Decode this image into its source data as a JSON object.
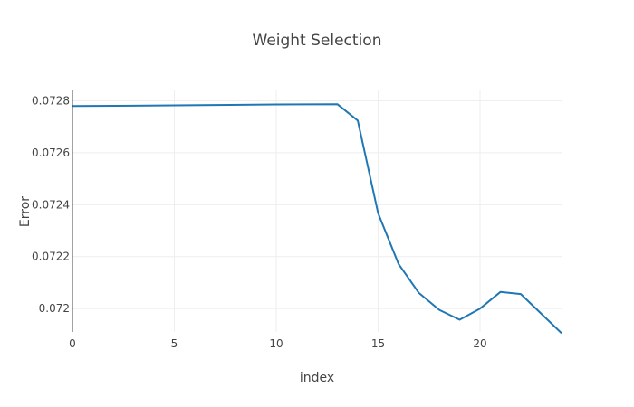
{
  "chart_data": {
    "type": "line",
    "title": "Weight Selection",
    "xlabel": "index",
    "ylabel": "Error",
    "xlim": [
      0,
      24
    ],
    "ylim": [
      0.07191,
      0.07284
    ],
    "x_ticks": [
      0,
      5,
      10,
      15,
      20
    ],
    "x_tick_labels": [
      "0",
      "5",
      "10",
      "15",
      "20"
    ],
    "y_ticks": [
      0.072,
      0.0722,
      0.0724,
      0.0726,
      0.0728
    ],
    "y_tick_labels": [
      "0.072",
      "0.0722",
      "0.0724",
      "0.0726",
      "0.0728"
    ],
    "grid": true,
    "series": [
      {
        "color": "#1f77b4",
        "x": [
          0,
          3,
          7,
          10,
          13,
          14,
          15,
          16,
          17,
          18,
          19,
          20,
          21,
          22,
          24
        ],
        "y": [
          0.07278,
          0.072781,
          0.072784,
          0.072786,
          0.072787,
          0.072724,
          0.072367,
          0.072172,
          0.07206,
          0.071995,
          0.071957,
          0.072,
          0.072064,
          0.072056,
          0.071905
        ]
      }
    ]
  }
}
